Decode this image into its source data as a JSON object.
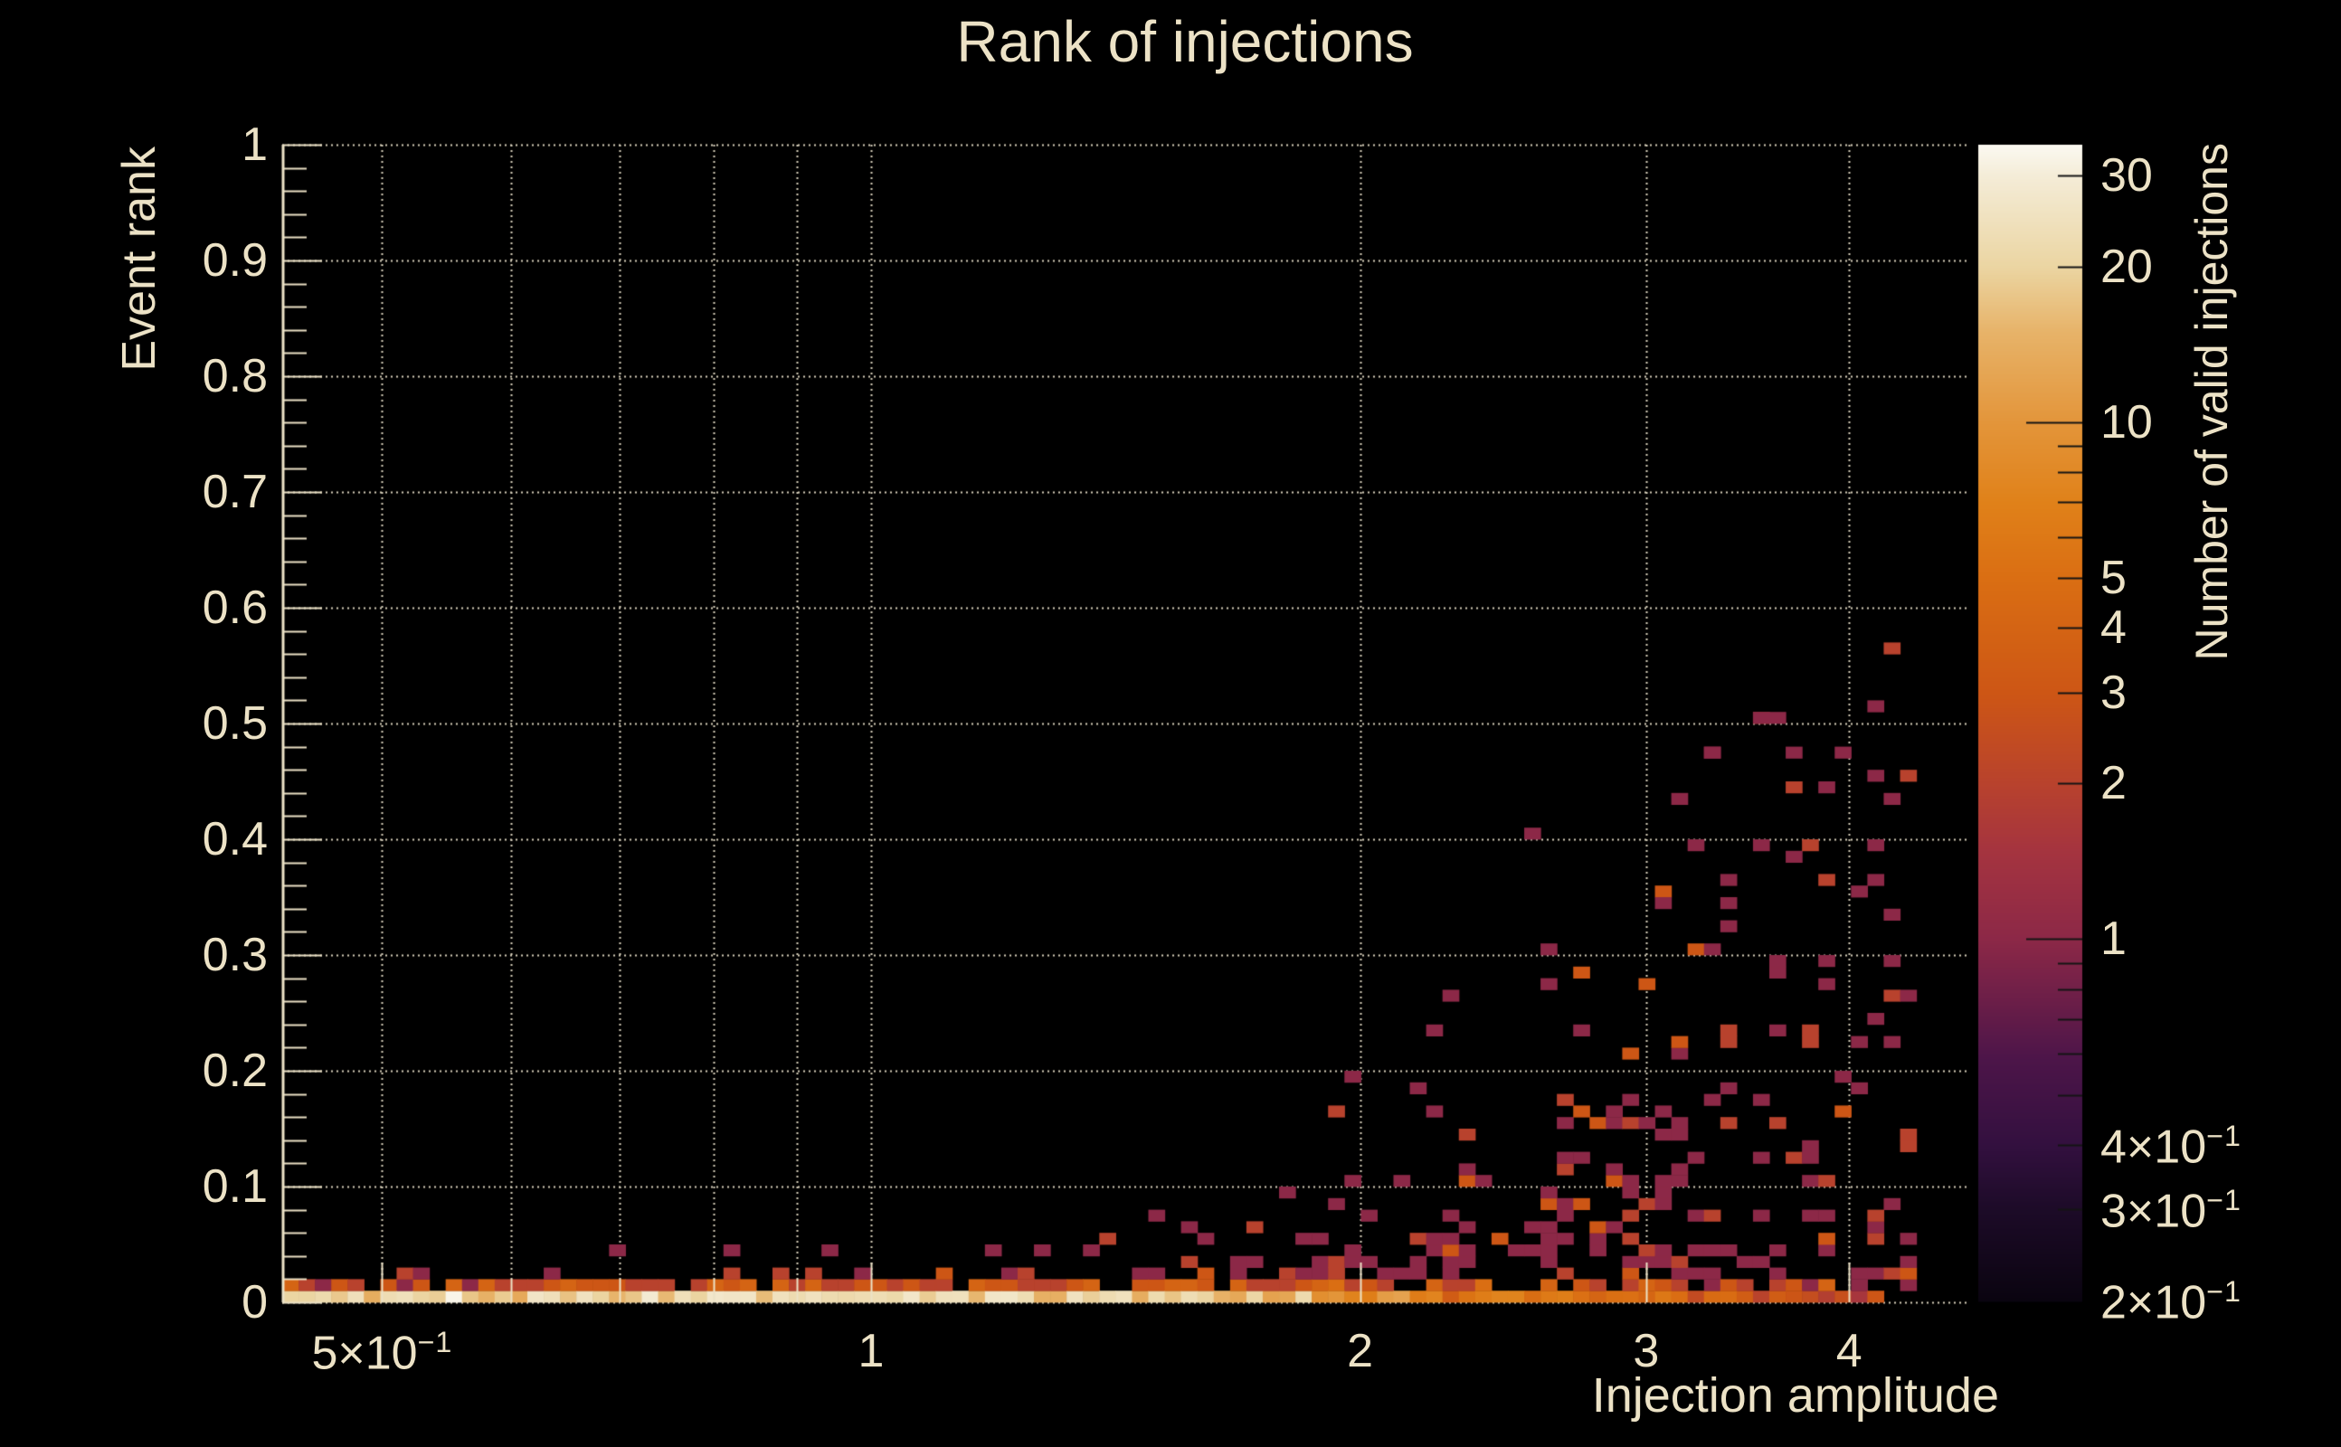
{
  "colors": {
    "background": "#000000",
    "text": "#ece2c6",
    "grid": "#d9d1bc",
    "axis": "#ece2c6",
    "colorbar_tick": "#141414"
  },
  "chart_data": {
    "type": "heatmap",
    "title": "Rank of injections",
    "xlabel": "Injection amplitude",
    "ylabel": "Event rank",
    "zlabel": "Number of valid injections",
    "x_axis": {
      "scale": "log",
      "min": 0.434,
      "max": 4.73,
      "gridlines": [
        0.5,
        0.6,
        0.7,
        0.8,
        0.9,
        1,
        2,
        3,
        4
      ],
      "major_ticks": [
        0.5,
        1,
        2,
        3,
        4
      ],
      "minor_ticks": [
        0.6,
        0.7,
        0.8,
        0.9
      ],
      "tick_labels": [
        {
          "v": 0.5,
          "main": "5×10",
          "exp": "−1"
        },
        {
          "v": 1,
          "main": "1"
        },
        {
          "v": 2,
          "main": "2"
        },
        {
          "v": 3,
          "main": "3"
        },
        {
          "v": 4,
          "main": "4"
        }
      ]
    },
    "y_axis": {
      "scale": "linear",
      "min": 0,
      "max": 1,
      "gridlines": [
        0.1,
        0.2,
        0.3,
        0.4,
        0.5,
        0.6,
        0.7,
        0.8,
        0.9,
        1.0
      ],
      "minor_tick_step": 0.02,
      "tick_labels": [
        {
          "v": 0,
          "main": "0"
        },
        {
          "v": 0.1,
          "main": "0.1"
        },
        {
          "v": 0.2,
          "main": "0.2"
        },
        {
          "v": 0.3,
          "main": "0.3"
        },
        {
          "v": 0.4,
          "main": "0.4"
        },
        {
          "v": 0.5,
          "main": "0.5"
        },
        {
          "v": 0.6,
          "main": "0.6"
        },
        {
          "v": 0.7,
          "main": "0.7"
        },
        {
          "v": 0.8,
          "main": "0.8"
        },
        {
          "v": 0.9,
          "main": "0.9"
        },
        {
          "v": 1,
          "main": "1"
        }
      ]
    },
    "z_colorbar": {
      "scale": "log",
      "min": 0.2,
      "max": 34.4,
      "major_ticks": [
        1,
        10
      ],
      "minor_ticks": [
        0.3,
        0.4,
        0.5,
        0.6,
        0.7,
        0.8,
        0.9,
        2,
        3,
        4,
        5,
        6,
        7,
        8,
        9,
        20,
        30
      ],
      "tick_labels": [
        {
          "v": 30,
          "main": "30"
        },
        {
          "v": 20,
          "main": "20"
        },
        {
          "v": 10,
          "main": "10"
        },
        {
          "v": 5,
          "main": "5"
        },
        {
          "v": 4,
          "main": "4"
        },
        {
          "v": 3,
          "main": "3"
        },
        {
          "v": 2,
          "main": "2"
        },
        {
          "v": 1,
          "main": "1"
        },
        {
          "v": 0.4,
          "main": "4×10",
          "exp": "−1"
        },
        {
          "v": 0.3,
          "main": "3×10",
          "exp": "−1"
        },
        {
          "v": 0.2,
          "main": "2×10",
          "exp": "−1"
        }
      ]
    },
    "palette": [
      [
        0.0,
        "#0a0410"
      ],
      [
        0.08,
        "#1d0b28"
      ],
      [
        0.135,
        "#33103f"
      ],
      [
        0.21,
        "#4d1549"
      ],
      [
        0.3125,
        "#8c2847"
      ],
      [
        0.39,
        "#a5343f"
      ],
      [
        0.447,
        "#b8422d"
      ],
      [
        0.5257,
        "#cd5615"
      ],
      [
        0.5816,
        "#d46414"
      ],
      [
        0.6249,
        "#da6e13"
      ],
      [
        0.69,
        "#e08119"
      ],
      [
        0.7595,
        "#e3953a"
      ],
      [
        0.8382,
        "#e7b369"
      ],
      [
        0.894,
        "#ebd5a2"
      ],
      [
        0.9727,
        "#f4ecd7"
      ],
      [
        1.0,
        "#fbf9f1"
      ]
    ],
    "histogram": {
      "x_bins": {
        "count": 100,
        "min": 0.434,
        "max": 4.4,
        "spacing": "log"
      },
      "y_bins": {
        "count": 100,
        "min": 0,
        "max": 1
      },
      "render_seed": 11,
      "band_count_weights": [
        [
          1,
          0.72
        ],
        [
          2,
          0.18
        ],
        [
          3,
          0.1
        ]
      ],
      "density_segments": [
        {
          "amp": [
            0.434,
            0.62
          ],
          "row1": [
            13,
            26
          ],
          "row1_gap": 0.03,
          "row2": {
            "p": 0.82,
            "c": [
              1,
              4
            ]
          },
          "bands": [
            [
              0.02,
              0.03,
              0.1
            ]
          ]
        },
        {
          "amp": [
            0.62,
            0.85
          ],
          "row1": [
            15,
            30
          ],
          "row1_gap": 0.0,
          "row2": {
            "p": 0.88,
            "c": [
              2,
              4
            ]
          },
          "bands": [
            [
              0.02,
              0.03,
              0.13
            ],
            [
              0.03,
              0.05,
              0.02
            ]
          ]
        },
        {
          "amp": [
            0.85,
            1.05
          ],
          "row1": [
            16,
            32
          ],
          "row1_gap": 0.0,
          "row2": {
            "p": 0.92,
            "c": [
              2,
              4
            ]
          },
          "bands": [
            [
              0.02,
              0.03,
              0.16
            ],
            [
              0.03,
              0.05,
              0.04
            ]
          ]
        },
        {
          "amp": [
            1.05,
            1.35
          ],
          "row1": [
            14,
            28
          ],
          "row1_gap": 0.0,
          "row2": {
            "p": 0.92,
            "c": [
              2,
              4
            ]
          },
          "bands": [
            [
              0.02,
              0.03,
              0.24
            ],
            [
              0.03,
              0.05,
              0.07
            ],
            [
              0.05,
              0.07,
              0.015
            ]
          ]
        },
        {
          "amp": [
            1.35,
            1.6
          ],
          "row1": [
            13,
            26
          ],
          "row1_gap": 0.0,
          "row2": {
            "p": 0.9,
            "c": [
              2,
              4
            ]
          },
          "bands": [
            [
              0.02,
              0.04,
              0.27
            ],
            [
              0.04,
              0.06,
              0.09
            ],
            [
              0.06,
              0.08,
              0.02
            ]
          ]
        },
        {
          "amp": [
            1.6,
            1.85
          ],
          "row1": [
            11,
            24
          ],
          "row1_gap": 0.0,
          "row2": {
            "p": 0.88,
            "c": [
              2,
              4
            ]
          },
          "bands": [
            [
              0.02,
              0.04,
              0.33
            ],
            [
              0.04,
              0.07,
              0.13
            ],
            [
              0.07,
              0.1,
              0.03
            ]
          ]
        },
        {
          "amp": [
            1.85,
            2.15
          ],
          "row1": [
            6,
            14
          ],
          "row1_gap": 0.0,
          "row2": {
            "p": 0.85,
            "c": [
              2,
              5
            ]
          },
          "bands": [
            [
              0.02,
              0.04,
              0.44
            ],
            [
              0.04,
              0.08,
              0.21
            ],
            [
              0.08,
              0.12,
              0.08
            ],
            [
              0.12,
              0.2,
              0.015
            ]
          ]
        },
        {
          "amp": [
            2.15,
            2.55
          ],
          "row1": [
            3,
            8
          ],
          "row1_gap": 0.02,
          "row2": {
            "p": 0.72,
            "c": [
              2,
              5
            ]
          },
          "bands": [
            [
              0.02,
              0.05,
              0.46
            ],
            [
              0.05,
              0.09,
              0.23
            ],
            [
              0.09,
              0.14,
              0.11
            ],
            [
              0.14,
              0.2,
              0.05
            ],
            [
              0.2,
              0.27,
              0.02
            ]
          ]
        },
        {
          "amp": [
            2.55,
            3.0
          ],
          "row1": [
            2.5,
            7
          ],
          "row1_gap": 0.05,
          "row2": {
            "p": 0.66,
            "c": [
              1,
              4
            ]
          },
          "bands": [
            [
              0.02,
              0.05,
              0.44
            ],
            [
              0.05,
              0.1,
              0.26
            ],
            [
              0.1,
              0.16,
              0.14
            ],
            [
              0.16,
              0.22,
              0.08
            ],
            [
              0.22,
              0.3,
              0.05
            ],
            [
              0.3,
              0.42,
              0.02
            ],
            [
              0.42,
              0.52,
              0.007
            ]
          ]
        },
        {
          "amp": [
            3.0,
            3.45
          ],
          "row1": [
            2,
            6
          ],
          "row1_gap": 0.1,
          "row2": {
            "p": 0.62,
            "c": [
              1,
              4
            ]
          },
          "bands": [
            [
              0.02,
              0.06,
              0.38
            ],
            [
              0.06,
              0.12,
              0.23
            ],
            [
              0.12,
              0.2,
              0.14
            ],
            [
              0.2,
              0.28,
              0.1
            ],
            [
              0.28,
              0.38,
              0.07
            ],
            [
              0.38,
              0.5,
              0.035
            ]
          ]
        },
        {
          "amp": [
            3.45,
            4.0
          ],
          "row1": [
            1.5,
            5
          ],
          "row1_gap": 0.15,
          "row2": {
            "p": 0.56,
            "c": [
              1,
              4
            ]
          },
          "bands": [
            [
              0.02,
              0.06,
              0.33
            ],
            [
              0.06,
              0.12,
              0.21
            ],
            [
              0.12,
              0.2,
              0.13
            ],
            [
              0.2,
              0.3,
              0.1
            ],
            [
              0.3,
              0.42,
              0.08
            ],
            [
              0.42,
              0.52,
              0.05
            ]
          ]
        },
        {
          "amp": [
            4.0,
            4.42
          ],
          "row1": [
            1,
            4
          ],
          "row1_gap": 0.3,
          "row2": {
            "p": 0.5,
            "c": [
              1,
              3
            ]
          },
          "bands": [
            [
              0.02,
              0.08,
              0.3
            ],
            [
              0.08,
              0.16,
              0.15
            ],
            [
              0.16,
              0.3,
              0.11
            ],
            [
              0.3,
              0.44,
              0.1
            ],
            [
              0.44,
              0.53,
              0.05
            ]
          ]
        }
      ],
      "outlier_bins": [
        [
          0.83,
          0.044,
          1
        ],
        [
          0.945,
          0.044,
          1
        ],
        [
          1.97,
          0.19,
          1
        ],
        [
          2.3,
          0.265,
          1
        ],
        [
          2.62,
          0.3,
          1
        ],
        [
          3.05,
          0.34,
          1
        ],
        [
          3.33,
          0.472,
          1
        ],
        [
          3.56,
          0.505,
          1
        ],
        [
          3.62,
          0.5,
          1
        ],
        [
          3.9,
          0.44,
          1
        ],
        [
          4.1,
          0.35,
          1
        ],
        [
          4.15,
          0.45,
          1
        ],
        [
          4.19,
          0.513,
          1
        ],
        [
          4.21,
          0.563,
          2
        ]
      ]
    }
  }
}
